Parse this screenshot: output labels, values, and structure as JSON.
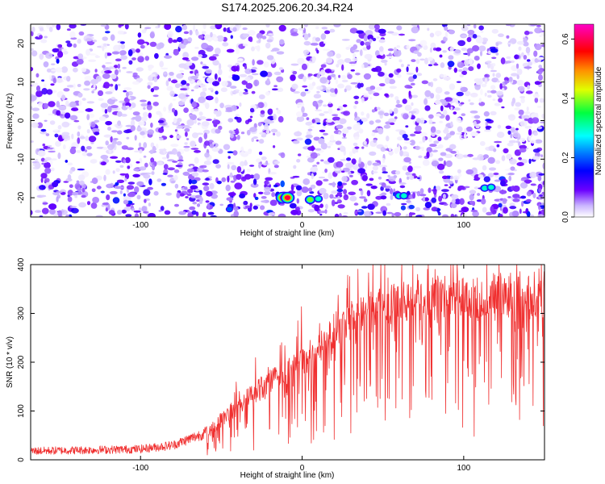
{
  "title": "S174.2025.206.20.34.R24",
  "chart_data": [
    {
      "type": "heatmap",
      "xlabel": "Height of straight line (km)",
      "ylabel": "Frequency (Hz)",
      "xlim": [
        -168,
        150
      ],
      "ylim": [
        -25,
        25
      ],
      "x_ticks": [
        "-100",
        "0",
        "100"
      ],
      "y_ticks": [
        "-20",
        "-10",
        "0",
        "10",
        "20"
      ],
      "colorbar": {
        "label": "Normalized spectral amplitude",
        "range": [
          0,
          0.65
        ],
        "ticks": [
          "0.0",
          "0.2",
          "0.4",
          "0.6"
        ],
        "colors": [
          "#ffffff",
          "#8000ff",
          "#0000ff",
          "#00ffff",
          "#00ff00",
          "#ffff00",
          "#ff8000",
          "#ff0000",
          "#ff00ff"
        ]
      },
      "features": [
        {
          "x": -12,
          "y": -20,
          "amplitude": 0.62
        },
        {
          "x": -9,
          "y": -20,
          "amplitude": 0.6
        },
        {
          "x": 5,
          "y": -20.5,
          "amplitude": 0.4
        },
        {
          "x": 10,
          "y": -20.3,
          "amplitude": 0.38
        },
        {
          "x": 60,
          "y": -19.5,
          "amplitude": 0.35
        },
        {
          "x": 63,
          "y": -19.5,
          "amplitude": 0.33
        },
        {
          "x": 113,
          "y": -17.5,
          "amplitude": 0.35
        },
        {
          "x": 117,
          "y": -17.3,
          "amplitude": 0.38
        },
        {
          "x": -45,
          "y": -23,
          "amplitude": 0.25
        }
      ]
    },
    {
      "type": "line",
      "xlabel": "Height of straight line (km)",
      "ylabel": "SNR (10 * v/v)",
      "xlim": [
        -168,
        150
      ],
      "ylim": [
        0,
        400
      ],
      "x_ticks": [
        "-100",
        "0",
        "100"
      ],
      "y_ticks": [
        "0",
        "100",
        "200",
        "300",
        "400"
      ],
      "color": "#f03030",
      "trend": {
        "x": [
          -168,
          -100,
          -80,
          -60,
          -40,
          -20,
          0,
          20,
          40,
          60,
          80,
          100,
          120,
          150
        ],
        "y": [
          18,
          22,
          30,
          55,
          110,
          160,
          200,
          265,
          300,
          320,
          328,
          335,
          338,
          340
        ]
      }
    }
  ]
}
